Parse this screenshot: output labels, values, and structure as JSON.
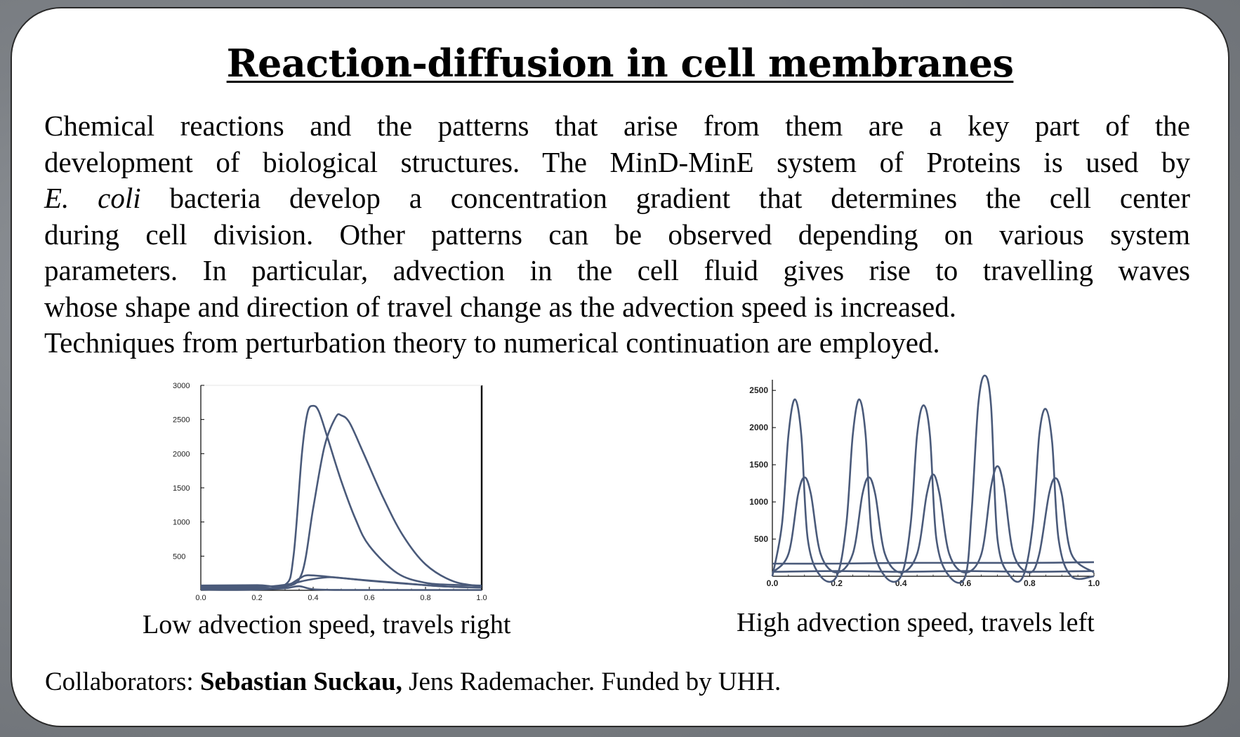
{
  "title": "Reaction-diffusion in cell membranes",
  "abstract": {
    "lines": [
      "Chemical reactions and the patterns that arise from them are a key part of the",
      "development of biological structures. The MinD-MinE system of Proteins is used by",
      "bacteria develop a concentration gradient that determines the cell center",
      "during cell division. Other patterns can be observed depending on various system",
      "parameters. In particular, advection in the cell fluid gives rise to travelling waves",
      "whose shape and direction of travel change as the advection speed is increased.",
      "Techniques from perturbation theory to numerical continuation are employed."
    ],
    "italic_term": "E. coli"
  },
  "captions": {
    "left": "Low advection speed, travels right",
    "right": "High advection speed, travels left"
  },
  "footer": {
    "prefix": "Collaborators:",
    "lead": "Sebastian Suckau,",
    "rest": "Jens Rademacher. Funded by UHH."
  },
  "colors": {
    "curve": "#4a5a7a",
    "axis": "#000000"
  },
  "chart_data": [
    {
      "type": "line",
      "title": "",
      "xlabel": "",
      "ylabel": "",
      "xlim": [
        0,
        1
      ],
      "ylim": [
        0,
        3000
      ],
      "xticks": [
        "0.0",
        "0.2",
        "0.4",
        "0.6",
        "0.8",
        "1.0"
      ],
      "yticks": [
        "500",
        "1000",
        "1500",
        "2000",
        "2500",
        "3000"
      ],
      "series": [
        {
          "x": [
            0.0,
            0.2,
            0.3,
            0.33,
            0.36,
            0.38,
            0.4,
            0.42,
            0.45,
            0.5,
            0.55,
            0.6,
            0.7,
            0.8,
            0.9,
            1.0
          ],
          "y": [
            70,
            75,
            80,
            500,
            2000,
            2600,
            2700,
            2620,
            2250,
            1600,
            1050,
            650,
            250,
            110,
            80,
            70
          ]
        },
        {
          "x": [
            0.0,
            0.2,
            0.3,
            0.36,
            0.4,
            0.44,
            0.48,
            0.5,
            0.53,
            0.58,
            0.65,
            0.72,
            0.8,
            0.9,
            1.0
          ],
          "y": [
            40,
            30,
            50,
            250,
            1200,
            2100,
            2530,
            2560,
            2450,
            2000,
            1350,
            800,
            380,
            130,
            60
          ]
        },
        {
          "x": [
            0.0,
            0.2,
            0.3,
            0.35,
            0.38,
            0.45,
            0.55,
            0.7,
            0.85,
            1.0
          ],
          "y": [
            20,
            15,
            60,
            170,
            220,
            200,
            160,
            110,
            60,
            40
          ]
        },
        {
          "x": [
            0.0,
            0.2,
            0.3,
            0.38,
            0.45,
            0.5,
            0.6,
            0.75,
            0.9,
            1.0
          ],
          "y": [
            60,
            50,
            80,
            150,
            190,
            180,
            140,
            90,
            50,
            40
          ]
        },
        {
          "x": [
            0.0,
            0.1,
            0.2,
            0.3,
            0.35,
            0.4,
            0.5,
            0.7,
            1.0
          ],
          "y": [
            10,
            5,
            10,
            30,
            60,
            15,
            5,
            5,
            5
          ]
        }
      ]
    },
    {
      "type": "line",
      "title": "",
      "xlabel": "",
      "ylabel": "",
      "xlim": [
        0,
        1
      ],
      "ylim": [
        0,
        2700
      ],
      "xticks": [
        "0.0",
        "0.2",
        "0.4",
        "0.6",
        "0.8",
        "1.0"
      ],
      "yticks": [
        "500",
        "1000",
        "1500",
        "2000",
        "2500"
      ],
      "series": [
        {
          "x": [
            0.0,
            0.03,
            0.05,
            0.07,
            0.09,
            0.11,
            0.15,
            0.2,
            0.23,
            0.25,
            0.27,
            0.29,
            0.31,
            0.35,
            0.4,
            0.43,
            0.45,
            0.47,
            0.49,
            0.51,
            0.55,
            0.6,
            0.62,
            0.64,
            0.66,
            0.68,
            0.7,
            0.74,
            0.78,
            0.81,
            0.83,
            0.85,
            0.87,
            0.89,
            0.93,
            1.0
          ],
          "y": [
            0,
            700,
            1900,
            2380,
            1900,
            500,
            0,
            0,
            700,
            1900,
            2380,
            1900,
            500,
            0,
            0,
            700,
            1900,
            2300,
            1900,
            500,
            0,
            0,
            900,
            2300,
            2700,
            2300,
            500,
            0,
            0,
            700,
            1900,
            2250,
            1800,
            500,
            0,
            0
          ]
        },
        {
          "x": [
            0.0,
            0.05,
            0.08,
            0.1,
            0.12,
            0.15,
            0.2,
            0.25,
            0.28,
            0.3,
            0.32,
            0.35,
            0.4,
            0.45,
            0.48,
            0.5,
            0.52,
            0.55,
            0.6,
            0.65,
            0.68,
            0.7,
            0.72,
            0.75,
            0.8,
            0.83,
            0.86,
            0.88,
            0.9,
            0.93,
            1.0
          ],
          "y": [
            50,
            300,
            1100,
            1330,
            1100,
            300,
            50,
            300,
            1100,
            1330,
            1100,
            300,
            50,
            300,
            1100,
            1370,
            1100,
            300,
            50,
            300,
            1200,
            1480,
            1200,
            300,
            50,
            300,
            1100,
            1320,
            1100,
            300,
            50
          ]
        },
        {
          "x": [
            0.0,
            0.2,
            0.4,
            0.6,
            0.8,
            1.0
          ],
          "y": [
            170,
            170,
            180,
            180,
            180,
            190
          ]
        },
        {
          "x": [
            0.0,
            0.2,
            0.4,
            0.6,
            0.8,
            1.0
          ],
          "y": [
            60,
            70,
            60,
            70,
            60,
            70
          ]
        }
      ]
    }
  ]
}
